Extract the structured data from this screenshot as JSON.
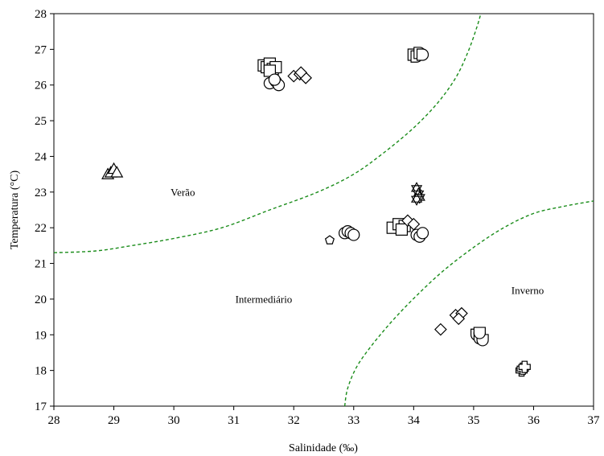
{
  "chart_data": {
    "type": "scatter",
    "title": "",
    "xlabel": "Salinidade (‰)",
    "ylabel": "Temperatura (°C)",
    "xlim": [
      28,
      37
    ],
    "ylim": [
      17,
      28
    ],
    "xticks": [
      "28",
      "29",
      "30",
      "31",
      "32",
      "33",
      "34",
      "35",
      "36",
      "37"
    ],
    "yticks": [
      "17",
      "18",
      "19",
      "20",
      "21",
      "22",
      "23",
      "24",
      "25",
      "26",
      "27",
      "28"
    ],
    "grid": false,
    "boundary_color": "#1a8c1a",
    "annotations": [
      {
        "text": "Verão",
        "x": 30.15,
        "y": 22.9
      },
      {
        "text": "Intermediário",
        "x": 31.5,
        "y": 19.9
      },
      {
        "text": "Inverno",
        "x": 35.9,
        "y": 20.15
      }
    ],
    "boundaries": [
      [
        [
          28.0,
          21.3
        ],
        [
          28.7,
          21.35
        ],
        [
          29.3,
          21.5
        ],
        [
          30.0,
          21.7
        ],
        [
          30.8,
          22.0
        ],
        [
          31.6,
          22.5
        ],
        [
          32.4,
          23.0
        ],
        [
          33.0,
          23.5
        ],
        [
          33.5,
          24.1
        ],
        [
          34.0,
          24.8
        ],
        [
          34.4,
          25.5
        ],
        [
          34.7,
          26.2
        ],
        [
          34.9,
          26.9
        ],
        [
          35.05,
          27.6
        ],
        [
          35.12,
          28.0
        ]
      ],
      [
        [
          32.85,
          17.0
        ],
        [
          32.9,
          17.5
        ],
        [
          33.05,
          18.1
        ],
        [
          33.3,
          18.7
        ],
        [
          33.65,
          19.4
        ],
        [
          34.05,
          20.1
        ],
        [
          34.5,
          20.8
        ],
        [
          35.0,
          21.45
        ],
        [
          35.5,
          22.0
        ],
        [
          36.0,
          22.4
        ],
        [
          36.5,
          22.6
        ],
        [
          37.0,
          22.75
        ]
      ]
    ],
    "series": [
      {
        "marker": "square",
        "points": [
          [
            31.5,
            26.55
          ],
          [
            31.55,
            26.5
          ],
          [
            31.6,
            26.6
          ],
          [
            31.65,
            26.45
          ],
          [
            31.7,
            26.5
          ],
          [
            31.6,
            26.4
          ]
        ]
      },
      {
        "marker": "circle",
        "points": [
          [
            31.6,
            26.05
          ],
          [
            31.7,
            26.1
          ],
          [
            31.75,
            26.0
          ],
          [
            31.68,
            26.15
          ]
        ]
      },
      {
        "marker": "diamond",
        "points": [
          [
            32.0,
            26.25
          ],
          [
            32.1,
            26.3
          ],
          [
            32.2,
            26.2
          ],
          [
            32.12,
            26.35
          ]
        ]
      },
      {
        "marker": "d-shape",
        "points": [
          [
            34.0,
            26.85
          ],
          [
            34.05,
            26.8
          ],
          [
            34.1,
            26.9
          ],
          [
            34.15,
            26.85
          ]
        ]
      },
      {
        "marker": "triangle-up",
        "points": [
          [
            28.9,
            23.5
          ],
          [
            28.95,
            23.55
          ],
          [
            29.0,
            23.65
          ],
          [
            29.05,
            23.55
          ]
        ]
      },
      {
        "marker": "star",
        "points": [
          [
            34.05,
            23.1
          ],
          [
            34.08,
            22.95
          ],
          [
            34.1,
            22.85
          ],
          [
            34.05,
            22.8
          ]
        ]
      },
      {
        "marker": "pentagon",
        "points": [
          [
            32.6,
            21.65
          ]
        ]
      },
      {
        "marker": "circle",
        "points": [
          [
            32.85,
            21.85
          ],
          [
            32.9,
            21.9
          ],
          [
            32.95,
            21.85
          ],
          [
            33.0,
            21.8
          ]
        ]
      },
      {
        "marker": "square",
        "points": [
          [
            33.65,
            22.0
          ],
          [
            33.75,
            22.1
          ],
          [
            33.85,
            22.05
          ],
          [
            33.8,
            21.95
          ]
        ]
      },
      {
        "marker": "diamond",
        "points": [
          [
            33.9,
            22.2
          ],
          [
            34.0,
            22.1
          ]
        ]
      },
      {
        "marker": "circle",
        "points": [
          [
            34.05,
            21.8
          ],
          [
            34.1,
            21.75
          ],
          [
            34.15,
            21.85
          ]
        ]
      },
      {
        "marker": "diamond",
        "points": [
          [
            34.45,
            19.15
          ],
          [
            34.7,
            19.55
          ],
          [
            34.8,
            19.6
          ],
          [
            34.75,
            19.45
          ]
        ]
      },
      {
        "marker": "u-shape",
        "points": [
          [
            35.05,
            19.0
          ],
          [
            35.1,
            18.9
          ],
          [
            35.15,
            18.85
          ],
          [
            35.1,
            19.05
          ]
        ]
      },
      {
        "marker": "cross",
        "points": [
          [
            35.8,
            18.0
          ],
          [
            35.82,
            18.05
          ],
          [
            35.85,
            18.1
          ]
        ]
      }
    ]
  }
}
